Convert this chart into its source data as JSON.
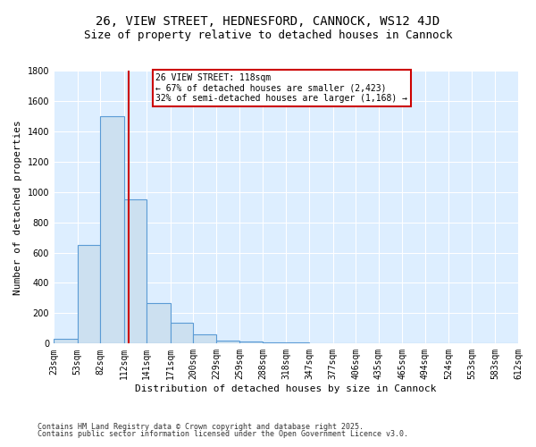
{
  "title": "26, VIEW STREET, HEDNESFORD, CANNOCK, WS12 4JD",
  "subtitle": "Size of property relative to detached houses in Cannock",
  "xlabel": "Distribution of detached houses by size in Cannock",
  "ylabel": "Number of detached properties",
  "bar_color": "#cce0f0",
  "bar_edge_color": "#5b9bd5",
  "background_color": "#ddeeff",
  "grid_color": "#ffffff",
  "bins": [
    23,
    53,
    82,
    112,
    141,
    171,
    200,
    229,
    259,
    288,
    318,
    347,
    377,
    406,
    435,
    465,
    494,
    524,
    553,
    583,
    612
  ],
  "counts": [
    30,
    650,
    1500,
    950,
    270,
    140,
    60,
    20,
    15,
    5,
    5,
    2,
    2,
    2,
    2,
    2,
    2,
    2,
    2,
    2
  ],
  "ylim": [
    0,
    1800
  ],
  "property_size": 118,
  "annotation_text": "26 VIEW STREET: 118sqm\n← 67% of detached houses are smaller (2,423)\n32% of semi-detached houses are larger (1,168) →",
  "annotation_box_color": "#ffffff",
  "annotation_border_color": "#cc0000",
  "vline_color": "#cc0000",
  "footer_line1": "Contains HM Land Registry data © Crown copyright and database right 2025.",
  "footer_line2": "Contains public sector information licensed under the Open Government Licence v3.0.",
  "title_fontsize": 10,
  "subtitle_fontsize": 9,
  "axis_fontsize": 8,
  "tick_fontsize": 7,
  "tick_labels": [
    "23sqm",
    "53sqm",
    "82sqm",
    "112sqm",
    "141sqm",
    "171sqm",
    "200sqm",
    "229sqm",
    "259sqm",
    "288sqm",
    "318sqm",
    "347sqm",
    "377sqm",
    "406sqm",
    "435sqm",
    "465sqm",
    "494sqm",
    "524sqm",
    "553sqm",
    "583sqm",
    "612sqm"
  ]
}
